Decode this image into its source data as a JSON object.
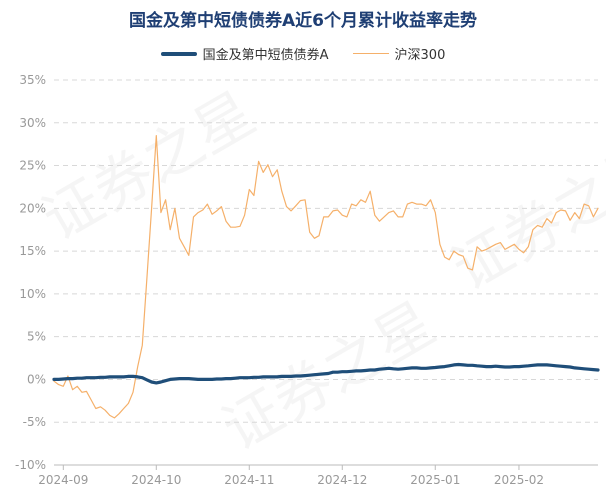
{
  "title": "国金及第中短债债券A近6个月累计收益率走势",
  "watermark": "证券之星",
  "colors": {
    "fund": "#1f4e79",
    "index": "#f5b06a",
    "grid": "#d8d8d8",
    "axis_text": "#999999",
    "title": "#1f3f74"
  },
  "chart_data": {
    "type": "line",
    "title": "国金及第中短债债券A近6个月累计收益率走势",
    "legend_position": "top-center",
    "grid": true,
    "ylim": [
      -10,
      35
    ],
    "yticks": [
      -10,
      -5,
      0,
      5,
      10,
      15,
      20,
      25,
      30,
      35
    ],
    "ytick_labels": [
      "-10%",
      "-5%",
      "0%",
      "5%",
      "10%",
      "15%",
      "20%",
      "25%",
      "30%",
      "35%"
    ],
    "xtick_labels": [
      "2024-09",
      "2024-10",
      "2024-11",
      "2024-12",
      "2025-01",
      "2025-02"
    ],
    "xtick_positions": [
      2,
      22,
      42,
      62,
      82,
      100
    ],
    "xlim": [
      0,
      117
    ],
    "series": [
      {
        "name": "国金及第中短债债券A",
        "values": [
          0.0,
          0.0,
          0.05,
          0.1,
          0.1,
          0.15,
          0.15,
          0.2,
          0.2,
          0.2,
          0.25,
          0.25,
          0.3,
          0.3,
          0.3,
          0.3,
          0.35,
          0.35,
          0.3,
          0.2,
          -0.05,
          -0.3,
          -0.4,
          -0.3,
          -0.15,
          0.0,
          0.05,
          0.1,
          0.1,
          0.1,
          0.05,
          0.0,
          0.0,
          0.0,
          0.0,
          0.05,
          0.05,
          0.1,
          0.1,
          0.15,
          0.2,
          0.2,
          0.2,
          0.25,
          0.25,
          0.3,
          0.3,
          0.3,
          0.3,
          0.35,
          0.35,
          0.35,
          0.4,
          0.4,
          0.45,
          0.5,
          0.55,
          0.6,
          0.65,
          0.7,
          0.85,
          0.85,
          0.9,
          0.9,
          0.95,
          1.0,
          1.0,
          1.05,
          1.1,
          1.1,
          1.2,
          1.25,
          1.3,
          1.25,
          1.2,
          1.25,
          1.3,
          1.35,
          1.35,
          1.3,
          1.3,
          1.35,
          1.4,
          1.45,
          1.5,
          1.6,
          1.7,
          1.75,
          1.7,
          1.65,
          1.65,
          1.6,
          1.55,
          1.5,
          1.5,
          1.55,
          1.5,
          1.45,
          1.45,
          1.5,
          1.5,
          1.55,
          1.6,
          1.65,
          1.7,
          1.7,
          1.7,
          1.65,
          1.6,
          1.55,
          1.5,
          1.45,
          1.35,
          1.3,
          1.25,
          1.2,
          1.15,
          1.1
        ]
      },
      {
        "name": "沪深300",
        "values": [
          -0.2,
          -0.6,
          -0.8,
          0.4,
          -1.2,
          -0.8,
          -1.5,
          -1.4,
          -2.4,
          -3.4,
          -3.2,
          -3.6,
          -4.2,
          -4.5,
          -4.0,
          -3.4,
          -2.8,
          -1.5,
          1.5,
          4.0,
          12.0,
          20.0,
          28.5,
          19.5,
          21.0,
          17.5,
          20.0,
          16.5,
          15.5,
          14.5,
          19.0,
          19.5,
          19.8,
          20.5,
          19.3,
          19.7,
          20.2,
          18.5,
          17.8,
          17.8,
          17.9,
          19.2,
          22.2,
          21.5,
          25.5,
          24.2,
          25.1,
          23.7,
          24.5,
          22.0,
          20.2,
          19.7,
          20.3,
          20.9,
          21.0,
          17.2,
          16.5,
          16.8,
          19.0,
          19.0,
          19.7,
          19.8,
          19.2,
          19.0,
          20.5,
          20.3,
          21.0,
          20.7,
          22.0,
          19.2,
          18.5,
          19.0,
          19.5,
          19.7,
          19.0,
          19.0,
          20.5,
          20.7,
          20.5,
          20.5,
          20.3,
          21.0,
          19.5,
          15.8,
          14.3,
          14.0,
          15.0,
          14.6,
          14.4,
          13.0,
          12.8,
          15.5,
          15.0,
          15.2,
          15.5,
          15.8,
          16.0,
          15.2,
          15.5,
          15.8,
          15.2,
          14.8,
          15.5,
          17.5,
          18.0,
          17.8,
          18.8,
          18.3,
          19.5,
          19.8,
          19.7,
          18.6,
          19.5,
          18.8,
          20.5,
          20.3,
          19.0,
          20.0
        ]
      }
    ]
  }
}
